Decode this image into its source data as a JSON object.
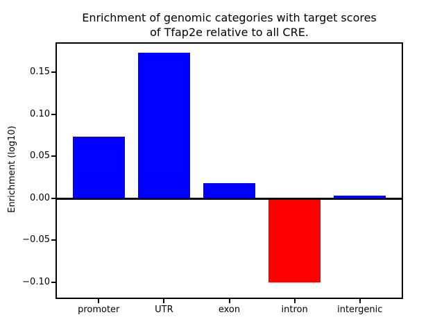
{
  "chart_data": {
    "type": "bar",
    "title": "Enrichment of genomic categories with target scores\nof Tfap2e relative to all CRE.",
    "xlabel": "",
    "ylabel": "Enrichment (log10)",
    "categories": [
      "promoter",
      "UTR",
      "exon",
      "intron",
      "intergenic"
    ],
    "values": [
      0.073,
      0.173,
      0.018,
      -0.1,
      0.003
    ],
    "bar_colors": [
      "#0000ff",
      "#0000ff",
      "#0000ff",
      "#ff0000",
      "#0000ff"
    ],
    "positive_color": "#0000ff",
    "negative_color": "#ff0000",
    "yticks": [
      -0.1,
      -0.05,
      0.0,
      0.05,
      0.1,
      0.15
    ],
    "ytick_labels": [
      "−0.10",
      "−0.05",
      "0.00",
      "0.05",
      "0.10",
      "0.15"
    ],
    "ylim": [
      -0.1185,
      0.1841
    ],
    "bar_width_fraction": 0.8,
    "grid": false,
    "legend": null,
    "zero_line": true,
    "frame_color": "#000000",
    "background_color": "#ffffff"
  }
}
